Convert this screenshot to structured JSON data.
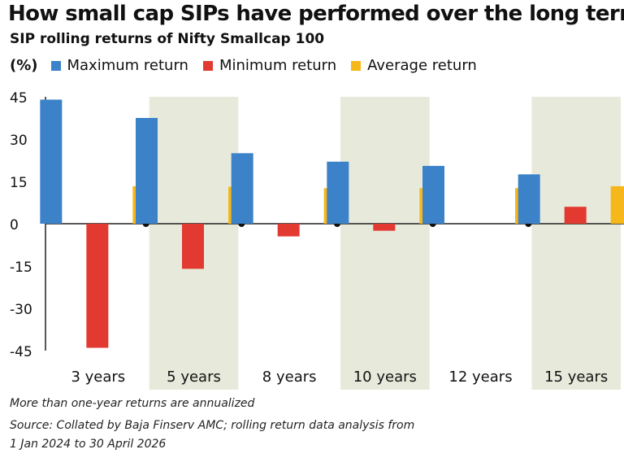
{
  "title": "How small cap SIPs have performed over the long term",
  "subtitle": "SIP rolling returns of Nifty Smallcap 100",
  "colors": {
    "max": "#3b82c8",
    "min": "#e23a31",
    "avg": "#f6b71a",
    "band": "#e7eadb",
    "axis": "#222222"
  },
  "chart_data": {
    "type": "bar",
    "unit_label": "(%)",
    "categories": [
      "3 years",
      "5 years",
      "8 years",
      "10 years",
      "12 years",
      "15 years"
    ],
    "series": [
      {
        "name": "Maximum return",
        "values": [
          44,
          37.5,
          25,
          22,
          20.5,
          17.5
        ]
      },
      {
        "name": "Minimum return",
        "values": [
          -44,
          -16,
          -4.5,
          -2.5,
          0,
          6
        ]
      },
      {
        "name": "Average return",
        "values": [
          13.3,
          13.1,
          12.6,
          12.6,
          12.6,
          13.3
        ]
      }
    ],
    "ylim": [
      -45,
      45
    ],
    "yticks": [
      "45",
      "30",
      "15",
      "0",
      "-15",
      "-30",
      "-45"
    ],
    "ytick_values": [
      45,
      30,
      15,
      0,
      -15,
      -30,
      -45
    ],
    "shaded_categories": [
      "5 years",
      "10 years",
      "15 years"
    ],
    "legend": "top-left"
  },
  "notes": {
    "line1": "More than one-year returns are annualized",
    "line2": "Source: Collated by Baja Finserv AMC; rolling return data analysis from",
    "line3": "1 Jan 2024 to 30 April 2026"
  }
}
